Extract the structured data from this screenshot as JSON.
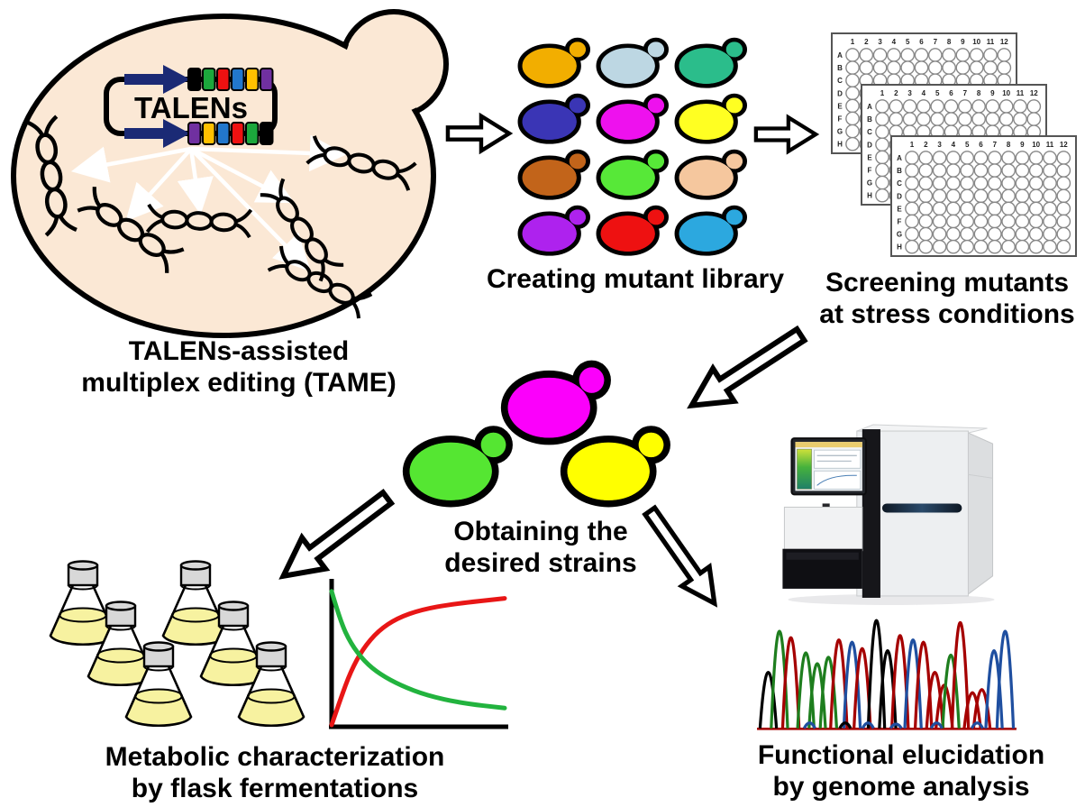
{
  "figure": {
    "type": "workflow-diagram",
    "background": "#ffffff"
  },
  "plasmid": {
    "label": "TALENs",
    "top_blocks": [
      "#000000",
      "#1ca73c",
      "#ee1111",
      "#2277cc",
      "#ffc000",
      "#7030a0"
    ],
    "bottom_blocks": [
      "#7030a0",
      "#ffc000",
      "#2277cc",
      "#ee1111",
      "#1ca73c",
      "#000000"
    ]
  },
  "tame": {
    "line1": "TALENs-assisted",
    "line2": "multiplex editing (TAME)"
  },
  "library": {
    "caption": "Creating mutant library",
    "colors": [
      [
        "#f2ae00",
        "#bdd7e3",
        "#2bbd8b"
      ],
      [
        "#3a35b5",
        "#ee11ee",
        "#ffff22"
      ],
      [
        "#c2641a",
        "#57e838",
        "#f5c79e"
      ],
      [
        "#ae22ee",
        "#ee1111",
        "#2ca8df"
      ]
    ]
  },
  "screening": {
    "line1": "Screening mutants",
    "line2": "at stress conditions"
  },
  "plates": {
    "count": 3,
    "columns": [
      "1",
      "2",
      "3",
      "4",
      "5",
      "6",
      "7",
      "8",
      "9",
      "10",
      "11",
      "12"
    ],
    "rows": [
      "A",
      "B",
      "C",
      "D",
      "E",
      "F",
      "G",
      "H"
    ]
  },
  "strains": {
    "line1": "Obtaining the",
    "line2": "desired strains",
    "colors": [
      "#fb00fb",
      "#55e632",
      "#ffff00"
    ]
  },
  "metabolic": {
    "line1": "Metabolic characterization",
    "line2": "by flask fermentations",
    "flask_count": 6
  },
  "functional": {
    "line1": "Functional elucidation",
    "line2": "by genome analysis"
  },
  "palette": {
    "cell_fill": "#fbe8d5",
    "outline": "#000000",
    "flask_liquid": "#f7f2a0",
    "flask_cap": "#d8d8d8",
    "arrow_fill": "#ffffff",
    "plasmid_arrow": "#1b2a75",
    "chart_red": "#e81616",
    "chart_green": "#22b33e",
    "trace_colors": {
      "K": "#000000",
      "G": "#1e7e1e",
      "R": "#a50000",
      "B": "#1f4fa0"
    }
  },
  "chart_data": [
    {
      "id": "fermentation-profile",
      "type": "line",
      "title": "",
      "xlabel": "",
      "ylabel": "",
      "axes_labeled": false,
      "x_range": [
        0,
        1
      ],
      "y_range": [
        0,
        1
      ],
      "series": [
        {
          "name": "red-curve-rising",
          "color": "#e81616",
          "points": [
            [
              0,
              0
            ],
            [
              0.05,
              0.18
            ],
            [
              0.11,
              0.38
            ],
            [
              0.18,
              0.54
            ],
            [
              0.27,
              0.67
            ],
            [
              0.38,
              0.76
            ],
            [
              0.52,
              0.82
            ],
            [
              0.7,
              0.86
            ],
            [
              1,
              0.9
            ]
          ]
        },
        {
          "name": "green-curve-decaying",
          "color": "#22b33e",
          "points": [
            [
              0,
              0.95
            ],
            [
              0.05,
              0.74
            ],
            [
              0.11,
              0.58
            ],
            [
              0.19,
              0.45
            ],
            [
              0.28,
              0.36
            ],
            [
              0.4,
              0.28
            ],
            [
              0.55,
              0.21
            ],
            [
              0.75,
              0.155
            ],
            [
              1,
              0.12
            ]
          ]
        }
      ]
    },
    {
      "id": "sanger-sequencing-trace",
      "type": "line",
      "description": "DNA chromatogram peaks, left to right; h = relative peak height 0-1, c = trace color key",
      "peaks": [
        {
          "x": 0.037,
          "h": 0.52,
          "c": "K"
        },
        {
          "x": 0.081,
          "h": 0.9,
          "c": "G"
        },
        {
          "x": 0.126,
          "h": 0.84,
          "c": "R"
        },
        {
          "x": 0.185,
          "h": 0.7,
          "c": "G"
        },
        {
          "x": 0.23,
          "h": 0.6,
          "c": "G"
        },
        {
          "x": 0.274,
          "h": 0.66,
          "c": "G"
        },
        {
          "x": 0.315,
          "h": 0.82,
          "c": "R"
        },
        {
          "x": 0.367,
          "h": 0.8,
          "c": "B"
        },
        {
          "x": 0.407,
          "h": 0.74,
          "c": "R"
        },
        {
          "x": 0.463,
          "h": 1.0,
          "c": "K"
        },
        {
          "x": 0.507,
          "h": 0.72,
          "c": "K"
        },
        {
          "x": 0.556,
          "h": 0.86,
          "c": "R"
        },
        {
          "x": 0.607,
          "h": 0.82,
          "c": "B"
        },
        {
          "x": 0.648,
          "h": 0.8,
          "c": "R"
        },
        {
          "x": 0.693,
          "h": 0.52,
          "c": "R"
        },
        {
          "x": 0.73,
          "h": 0.4,
          "c": "R"
        },
        {
          "x": 0.756,
          "h": 0.68,
          "c": "G"
        },
        {
          "x": 0.793,
          "h": 0.98,
          "c": "R"
        },
        {
          "x": 0.841,
          "h": 0.33,
          "c": "R"
        },
        {
          "x": 0.878,
          "h": 0.36,
          "c": "R"
        },
        {
          "x": 0.926,
          "h": 0.72,
          "c": "B"
        },
        {
          "x": 0.97,
          "h": 0.9,
          "c": "B"
        },
        {
          "x": 0.2,
          "h": 0.05,
          "c": "B"
        },
        {
          "x": 0.34,
          "h": 0.05,
          "c": "K"
        },
        {
          "x": 0.43,
          "h": 0.05,
          "c": "B"
        },
        {
          "x": 0.54,
          "h": 0.04,
          "c": "B"
        },
        {
          "x": 0.7,
          "h": 0.05,
          "c": "B"
        },
        {
          "x": 0.86,
          "h": 0.05,
          "c": "B"
        }
      ]
    }
  ]
}
